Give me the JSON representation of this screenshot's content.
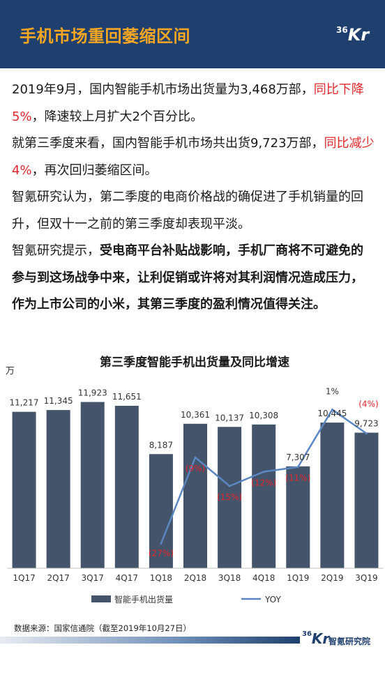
{
  "header": {
    "title": "手机市场重回萎缩区间",
    "logo_num": "36",
    "logo_letter": "Kr"
  },
  "paragraphs": [
    [
      {
        "text": "2019年9月，国内智能手机市场出货量为3,468万部，",
        "style": "normal"
      },
      {
        "text": "同比下降5%",
        "style": "red"
      },
      {
        "text": "，降速较上月扩大2个百分比。",
        "style": "normal"
      }
    ],
    [
      {
        "text": "就第三季度来看，国内智能手机市场共出货9,723万部，",
        "style": "normal"
      },
      {
        "text": "同比减少4%",
        "style": "red"
      },
      {
        "text": "，再次回归萎缩区间。",
        "style": "normal"
      }
    ],
    [
      {
        "text": "智氪研究认为，第二季度的电商价格战的确促进了手机销量的回升，但双十一之前的第三季度却表现平淡。",
        "style": "normal"
      }
    ],
    [
      {
        "text": "智氪研究提示，",
        "style": "normal"
      },
      {
        "text": "受电商平台补贴战影响，手机厂商将不可避免的参与到这场战争中来，让利促销或许将对其利润情况造成压力，作为上市公司的小米，其第三季度的盈利情况值得关注。",
        "style": "bold"
      }
    ]
  ],
  "colors": {
    "bar": "#44546a",
    "line": "#5a86c2",
    "neg_label": "#e2282c",
    "header_bg": "#1f3f6e",
    "title_accent": "#f6a623"
  },
  "chart_data": {
    "type": "bar",
    "title": "第三季度智能手机出货量及同比增速",
    "ylabel": "万",
    "categories": [
      "1Q17",
      "2Q17",
      "3Q17",
      "4Q17",
      "1Q18",
      "2Q18",
      "3Q18",
      "4Q18",
      "1Q19",
      "2Q19",
      "3Q19"
    ],
    "series": [
      {
        "name": "智能手机出货量",
        "type": "bar",
        "values": [
          11217,
          11345,
          11923,
          11651,
          8187,
          10361,
          10137,
          10308,
          7307,
          10445,
          9723
        ],
        "labels": [
          "11,217",
          "11,345",
          "11,923",
          "11,651",
          "8,187",
          "10,361",
          "10,137",
          "10,308",
          "7,307",
          "10,445",
          "9,723"
        ]
      },
      {
        "name": "YOY",
        "type": "line",
        "values": [
          null,
          null,
          null,
          null,
          -27,
          -9,
          -15,
          -12,
          -11,
          1,
          -4
        ],
        "labels": [
          "",
          "",
          "",
          "",
          "(27%)",
          "(9%)",
          "(15%)",
          "(12%)",
          "(11%)",
          "1%",
          "(4%)"
        ]
      }
    ],
    "ylim": [
      0,
      13000
    ],
    "yoy_lim": [
      -30,
      5
    ],
    "grid": false,
    "legend": "bottom"
  },
  "source": "数据来源：国家信通院（截至2019年10月27日）",
  "footer": {
    "logo_num": "36",
    "logo_letter": "Kr",
    "org": "智氪研究院"
  }
}
